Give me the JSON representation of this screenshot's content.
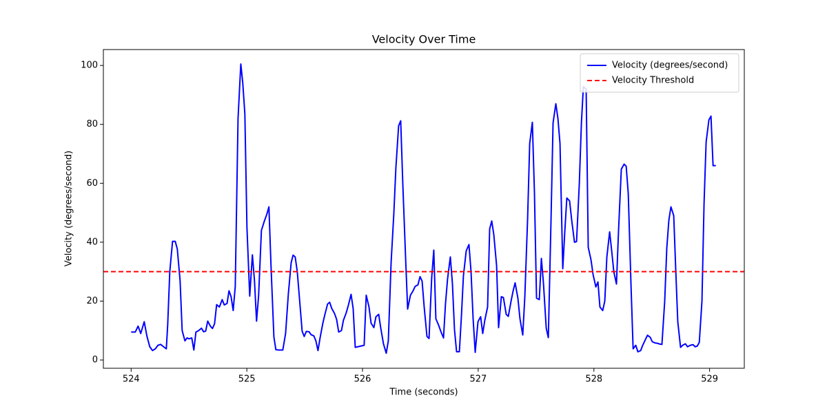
{
  "chart_data": {
    "type": "line",
    "title": "Velocity Over Time",
    "xlabel": "Time (seconds)",
    "ylabel": "Velocity (degrees/second)",
    "x": [
      524.0,
      524.036,
      524.06,
      524.083,
      524.113,
      524.137,
      524.161,
      524.185,
      524.209,
      524.232,
      524.256,
      524.28,
      524.304,
      524.316,
      524.334,
      524.358,
      524.381,
      524.399,
      524.423,
      524.441,
      524.465,
      524.483,
      524.5,
      524.524,
      524.542,
      524.56,
      524.584,
      524.608,
      524.626,
      524.644,
      524.662,
      524.685,
      524.703,
      524.721,
      524.739,
      524.763,
      524.787,
      524.805,
      524.829,
      524.846,
      524.864,
      524.882,
      524.9,
      524.924,
      524.948,
      524.965,
      524.983,
      525.001,
      525.025,
      525.048,
      525.066,
      525.084,
      525.102,
      525.126,
      525.15,
      525.173,
      525.191,
      525.209,
      525.234,
      525.251,
      525.275,
      525.311,
      525.335,
      525.359,
      525.383,
      525.4,
      525.418,
      525.436,
      525.46,
      525.478,
      525.496,
      525.514,
      525.538,
      525.555,
      525.579,
      525.597,
      525.615,
      525.633,
      525.657,
      525.675,
      525.698,
      525.716,
      525.734,
      525.758,
      525.776,
      525.794,
      525.818,
      525.835,
      525.859,
      525.877,
      525.901,
      525.919,
      525.937,
      526.014,
      526.032,
      526.056,
      526.074,
      526.098,
      526.116,
      526.14,
      526.157,
      526.181,
      526.205,
      526.223,
      526.247,
      526.271,
      526.288,
      526.312,
      526.33,
      526.348,
      526.372,
      526.39,
      526.414,
      526.437,
      526.455,
      526.479,
      526.497,
      526.515,
      526.533,
      526.557,
      526.575,
      526.598,
      526.616,
      526.634,
      526.658,
      526.676,
      526.7,
      526.717,
      526.735,
      526.759,
      526.777,
      526.795,
      526.813,
      526.837,
      526.855,
      526.872,
      526.896,
      526.92,
      526.938,
      526.956,
      526.974,
      526.998,
      527.021,
      527.039,
      527.057,
      527.081,
      527.099,
      527.117,
      527.135,
      527.159,
      527.176,
      527.2,
      527.218,
      527.242,
      527.26,
      527.284,
      527.302,
      527.319,
      527.343,
      527.361,
      527.385,
      527.403,
      527.427,
      527.445,
      527.468,
      527.486,
      527.504,
      527.528,
      527.546,
      527.564,
      527.588,
      527.606,
      527.629,
      527.647,
      527.671,
      527.689,
      527.707,
      527.731,
      527.749,
      527.766,
      527.79,
      527.808,
      527.832,
      527.85,
      527.874,
      527.892,
      527.909,
      527.933,
      527.951,
      527.975,
      527.993,
      528.017,
      528.035,
      528.052,
      528.076,
      528.094,
      528.112,
      528.136,
      528.154,
      528.172,
      528.195,
      528.213,
      528.237,
      528.261,
      528.279,
      528.297,
      528.321,
      528.339,
      528.362,
      528.38,
      528.404,
      528.422,
      528.446,
      528.463,
      528.487,
      528.505,
      528.529,
      528.547,
      528.571,
      528.588,
      528.612,
      528.63,
      528.648,
      528.666,
      528.69,
      528.708,
      528.725,
      528.749,
      528.767,
      528.791,
      528.809,
      528.833,
      528.857,
      528.875,
      528.893,
      528.911,
      528.934,
      528.952,
      528.97,
      528.994,
      529.012,
      529.03,
      529.054
    ],
    "series": [
      {
        "name": "Velocity (degrees/second)",
        "color": "#0000ff",
        "values": [
          9.5,
          9.5,
          11.5,
          9,
          13,
          8,
          4.5,
          3.2,
          3.8,
          5,
          5.3,
          4.5,
          3.8,
          12,
          30,
          40.3,
          40.3,
          37.7,
          27,
          10,
          6.5,
          7.5,
          7.2,
          7.5,
          3.4,
          9.5,
          10,
          10.8,
          9.6,
          9.8,
          13.2,
          11.5,
          10.7,
          12.3,
          18.8,
          18,
          20.5,
          18.7,
          19.2,
          23.5,
          21.5,
          16.8,
          25,
          82,
          100.5,
          94,
          83.5,
          45,
          21.7,
          35.7,
          27,
          13.2,
          22,
          44,
          47,
          49.5,
          52,
          32,
          7.8,
          3.5,
          3.4,
          3.4,
          9,
          22.5,
          33,
          35.6,
          35,
          30,
          18.5,
          9.8,
          8,
          9.7,
          9.6,
          8.6,
          8.2,
          6.5,
          3.2,
          7.5,
          12.5,
          15.5,
          19,
          19.6,
          17.5,
          15.8,
          13.8,
          9.5,
          10,
          13.5,
          16,
          18.5,
          22.3,
          17.5,
          4.3,
          5,
          22,
          18,
          12.5,
          11,
          14.7,
          15.5,
          11,
          5.5,
          2.3,
          6.5,
          33,
          50,
          65,
          79.5,
          81.2,
          60,
          35,
          17.3,
          22,
          23.5,
          25,
          25.5,
          28.3,
          26.8,
          18,
          8,
          7.3,
          28,
          37.3,
          14,
          11.8,
          9.8,
          7.5,
          19,
          27.5,
          35,
          26,
          10.3,
          2.8,
          2.8,
          15,
          28.5,
          37,
          39.2,
          30,
          14,
          2.6,
          13,
          14.7,
          9,
          13.5,
          18,
          44.5,
          47.2,
          42.5,
          32,
          11,
          21.5,
          21.2,
          15.5,
          14.8,
          20,
          23.5,
          26.2,
          21,
          14,
          8.5,
          21.5,
          48,
          73.5,
          80.7,
          57,
          21,
          20.5,
          34.5,
          26,
          10.8,
          7.6,
          47,
          80.5,
          87,
          82,
          73.5,
          31,
          44,
          55,
          54,
          47.5,
          40,
          40.2,
          60,
          80.5,
          92.8,
          92,
          38.3,
          34,
          29,
          24.8,
          26.5,
          18,
          16.8,
          20,
          35,
          43.5,
          37,
          30,
          25.8,
          44,
          64.8,
          66.5,
          65.8,
          56.5,
          25,
          3.8,
          5,
          2.8,
          3.2,
          5,
          7,
          8.4,
          7.7,
          6.2,
          5.8,
          5.7,
          5.4,
          5.3,
          20,
          38,
          47.5,
          52,
          49,
          30,
          13,
          4.3,
          5,
          5.5,
          4.5,
          5,
          5.2,
          4.5,
          4.7,
          6,
          20,
          53,
          74,
          81.5,
          82.8,
          66,
          66
        ]
      }
    ],
    "threshold": {
      "name": "Velocity Threshold",
      "value": 30,
      "color": "#ff0000"
    },
    "xlim": [
      523.76,
      529.3
    ],
    "ylim": [
      -2.8,
      105.4
    ],
    "xticks": [
      524,
      525,
      526,
      527,
      528,
      529
    ],
    "yticks": [
      0,
      20,
      40,
      60,
      80,
      100
    ],
    "legend": "upper right"
  }
}
